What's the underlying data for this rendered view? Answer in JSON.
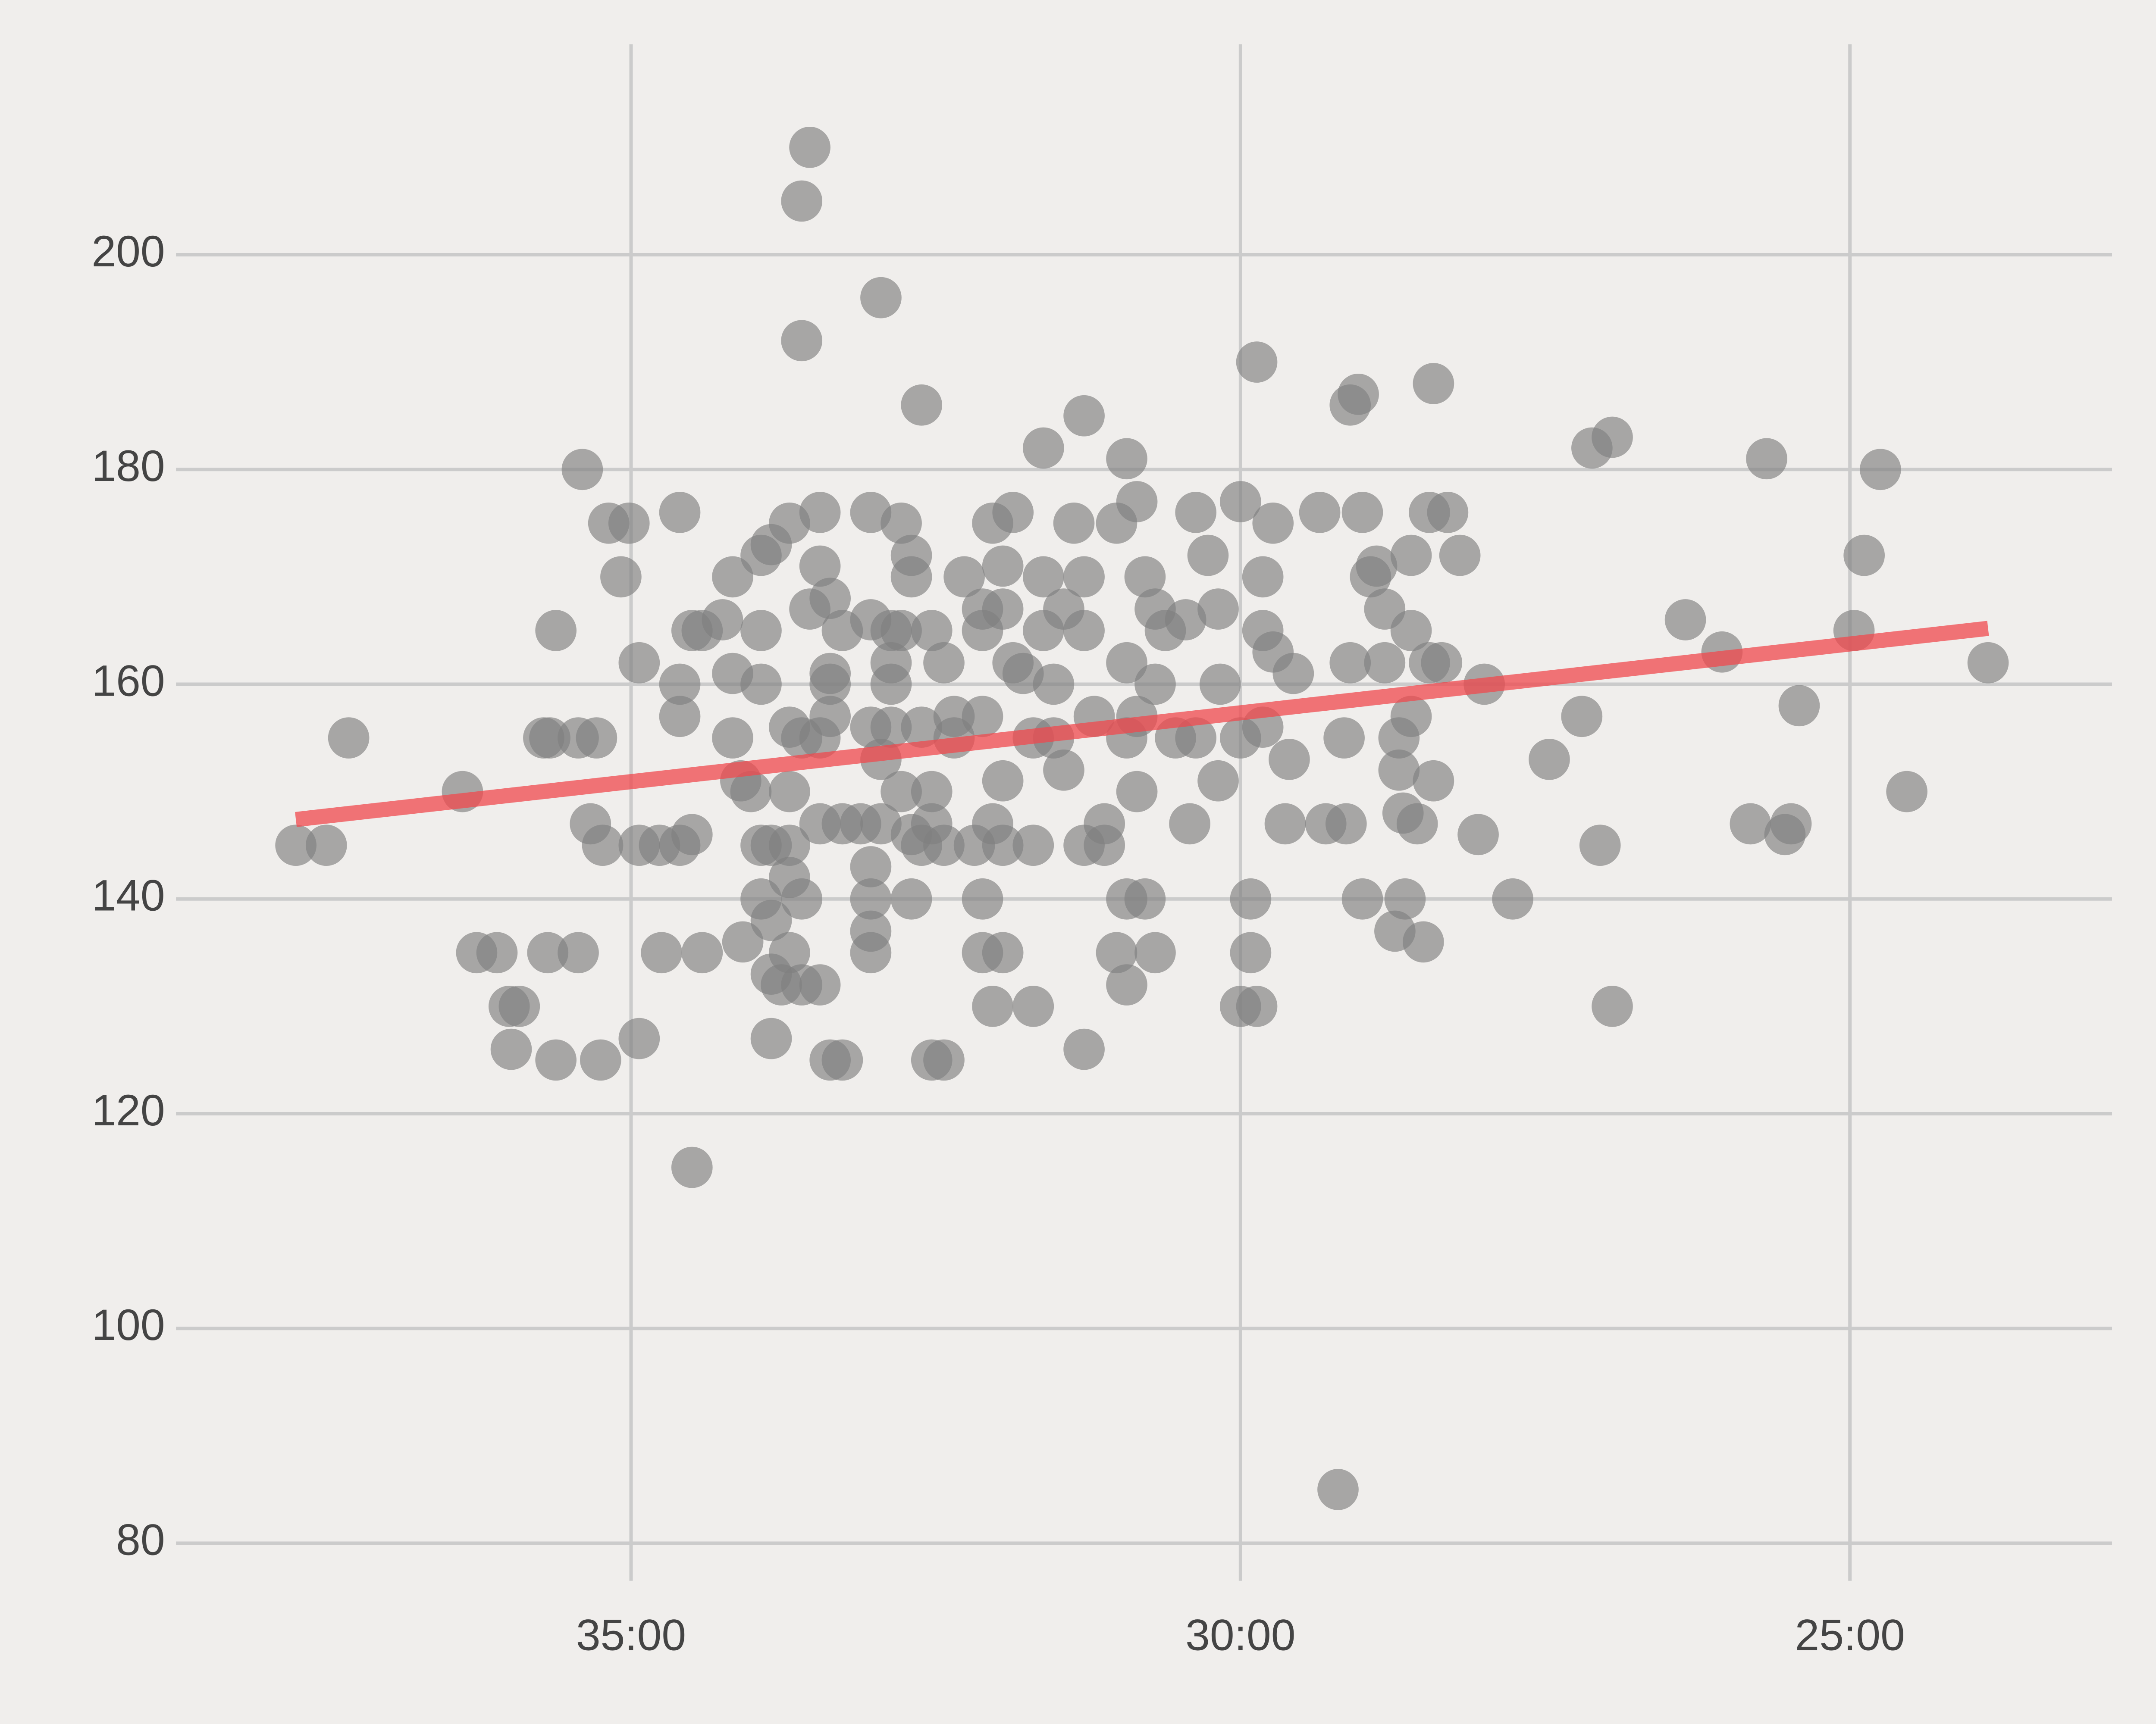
{
  "chart_data": {
    "type": "scatter",
    "xlim": [
      2324,
      1371
    ],
    "ylim": [
      76.5,
      219.6
    ],
    "xticks": [
      {
        "value": 2100,
        "label": "35:00"
      },
      {
        "value": 1800,
        "label": "30:00"
      },
      {
        "value": 1500,
        "label": "25:00"
      }
    ],
    "yticks": [
      80,
      100,
      120,
      140,
      160,
      180,
      200
    ],
    "grid": true,
    "color": "#808080",
    "alpha": 0.65,
    "x": [
      2265,
      2250,
      2239,
      2183,
      2176,
      2166,
      2160,
      2155,
      2159,
      2141,
      2137,
      2137,
      2143,
      2140,
      2126,
      2124,
      2126,
      2117,
      2120,
      2114,
      2115,
      2111,
      2105,
      2101,
      2096,
      2096,
      2096,
      2086,
      2085,
      2076,
      2076,
      2076,
      2076,
      2070,
      2070,
      2070,
      2065,
      2065,
      2055,
      2050,
      2050,
      2050,
      2046,
      2045,
      2041,
      2036,
      2036,
      2036,
      2036,
      2036,
      2031,
      2031,
      2031,
      2031,
      2031,
      2026,
      2022,
      2022,
      2022,
      2022,
      2022,
      2022,
      2016,
      2016,
      2012,
      2016,
      2016,
      2016,
      2012,
      2007,
      2007,
      2007,
      2007,
      2007,
      2002,
      2002,
      2002,
      2002,
      2002,
      1996,
      1996,
      1996,
      1987,
      1982,
      1982,
      1982,
      1982,
      1982,
      1982,
      1982,
      1977,
      1977,
      1977,
      1972,
      1972,
      1972,
      1972,
      1967,
      1967,
      1967,
      1962,
      1962,
      1962,
      1962,
      1957,
      1957,
      1957,
      1952,
      1952,
      1952,
      1952,
      1946,
      1946,
      1946,
      1941,
      1941,
      1936,
      1931,
      1927,
      1927,
      1927,
      1927,
      1927,
      1922,
      1922,
      1922,
      1917,
      1917,
      1917,
      1917,
      1917,
      1912,
      1912,
      1907,
      1902,
      1902,
      1902,
      1897,
      1897,
      1897,
      1892,
      1892,
      1887,
      1887,
      1882,
      1877,
      1877,
      1877,
      1877,
      1877,
      1872,
      1867,
      1867,
      1861,
      1861,
      1856,
      1856,
      1856,
      1856,
      1856,
      1851,
      1851,
      1851,
      1847,
      1847,
      1842,
      1842,
      1842,
      1837,
      1832,
      1827,
      1825,
      1822,
      1822,
      1816,
      1811,
      1811,
      1810,
      1800,
      1800,
      1800,
      1795,
      1795,
      1792,
      1792,
      1789,
      1789,
      1789,
      1784,
      1784,
      1778,
      1776,
      1774,
      1761,
      1758,
      1752,
      1749,
      1748,
      1746,
      1746,
      1742,
      1740,
      1740,
      1736,
      1733,
      1729,
      1729,
      1724,
      1722,
      1722,
      1720,
      1719,
      1716,
      1716,
      1716,
      1713,
      1710,
      1707,
      1707,
      1705,
      1705,
      1701,
      1698,
      1692,
      1680,
      1683,
      1666,
      1648,
      1632,
      1627,
      1623,
      1617,
      1617,
      1581,
      1563,
      1549,
      1541,
      1532,
      1529,
      1525,
      1498,
      1493,
      1485,
      1472,
      1432
    ],
    "values": [
      145,
      145,
      155,
      150,
      135,
      135,
      130,
      130,
      126,
      135,
      125,
      165,
      155,
      155,
      135,
      180,
      155,
      155,
      147,
      145,
      125,
      175,
      170,
      175,
      162,
      127,
      145,
      145,
      135,
      176,
      160,
      157,
      145,
      146,
      115,
      165,
      135,
      165,
      166,
      170,
      161,
      155,
      151,
      136,
      150,
      172,
      165,
      160,
      145,
      140,
      173,
      145,
      138,
      133,
      127,
      132,
      175,
      156,
      150,
      145,
      142,
      135,
      205,
      192,
      210,
      155,
      132,
      140,
      167,
      176,
      171,
      155,
      147,
      132,
      168,
      161,
      160,
      157,
      125,
      165,
      147,
      125,
      147,
      176,
      166,
      156,
      143,
      140,
      137,
      135,
      196,
      153,
      147,
      165,
      162,
      160,
      156,
      175,
      165,
      150,
      172,
      170,
      146,
      140,
      186,
      156,
      145,
      165,
      150,
      147,
      125,
      162,
      145,
      125,
      157,
      155,
      170,
      145,
      167,
      165,
      157,
      140,
      135,
      175,
      130,
      147,
      171,
      167,
      151,
      145,
      135,
      176,
      162,
      161,
      155,
      145,
      130,
      182,
      170,
      165,
      160,
      155,
      167,
      152,
      175,
      185,
      170,
      165,
      145,
      126,
      157,
      147,
      145,
      175,
      135,
      181,
      162,
      155,
      140,
      132,
      177,
      157,
      150,
      170,
      140,
      167,
      160,
      135,
      165,
      155,
      166,
      147,
      176,
      155,
      172,
      167,
      151,
      160,
      177,
      155,
      130,
      140,
      135,
      190,
      130,
      170,
      165,
      156,
      175,
      163,
      147,
      153,
      161,
      176,
      147,
      85,
      155,
      147,
      186,
      162,
      187,
      176,
      140,
      170,
      171,
      167,
      162,
      137,
      155,
      152,
      148,
      140,
      172,
      165,
      157,
      147,
      136,
      176,
      162,
      188,
      151,
      162,
      176,
      172,
      160,
      146,
      140,
      153,
      157,
      182,
      145,
      183,
      130,
      166,
      163,
      147,
      181,
      146,
      147,
      158,
      165,
      172,
      180,
      150,
      162
    ],
    "trend": {
      "x": [
        2265,
        1432
      ],
      "values": [
        147.4,
        165.2
      ],
      "color": "#f0484e"
    }
  }
}
